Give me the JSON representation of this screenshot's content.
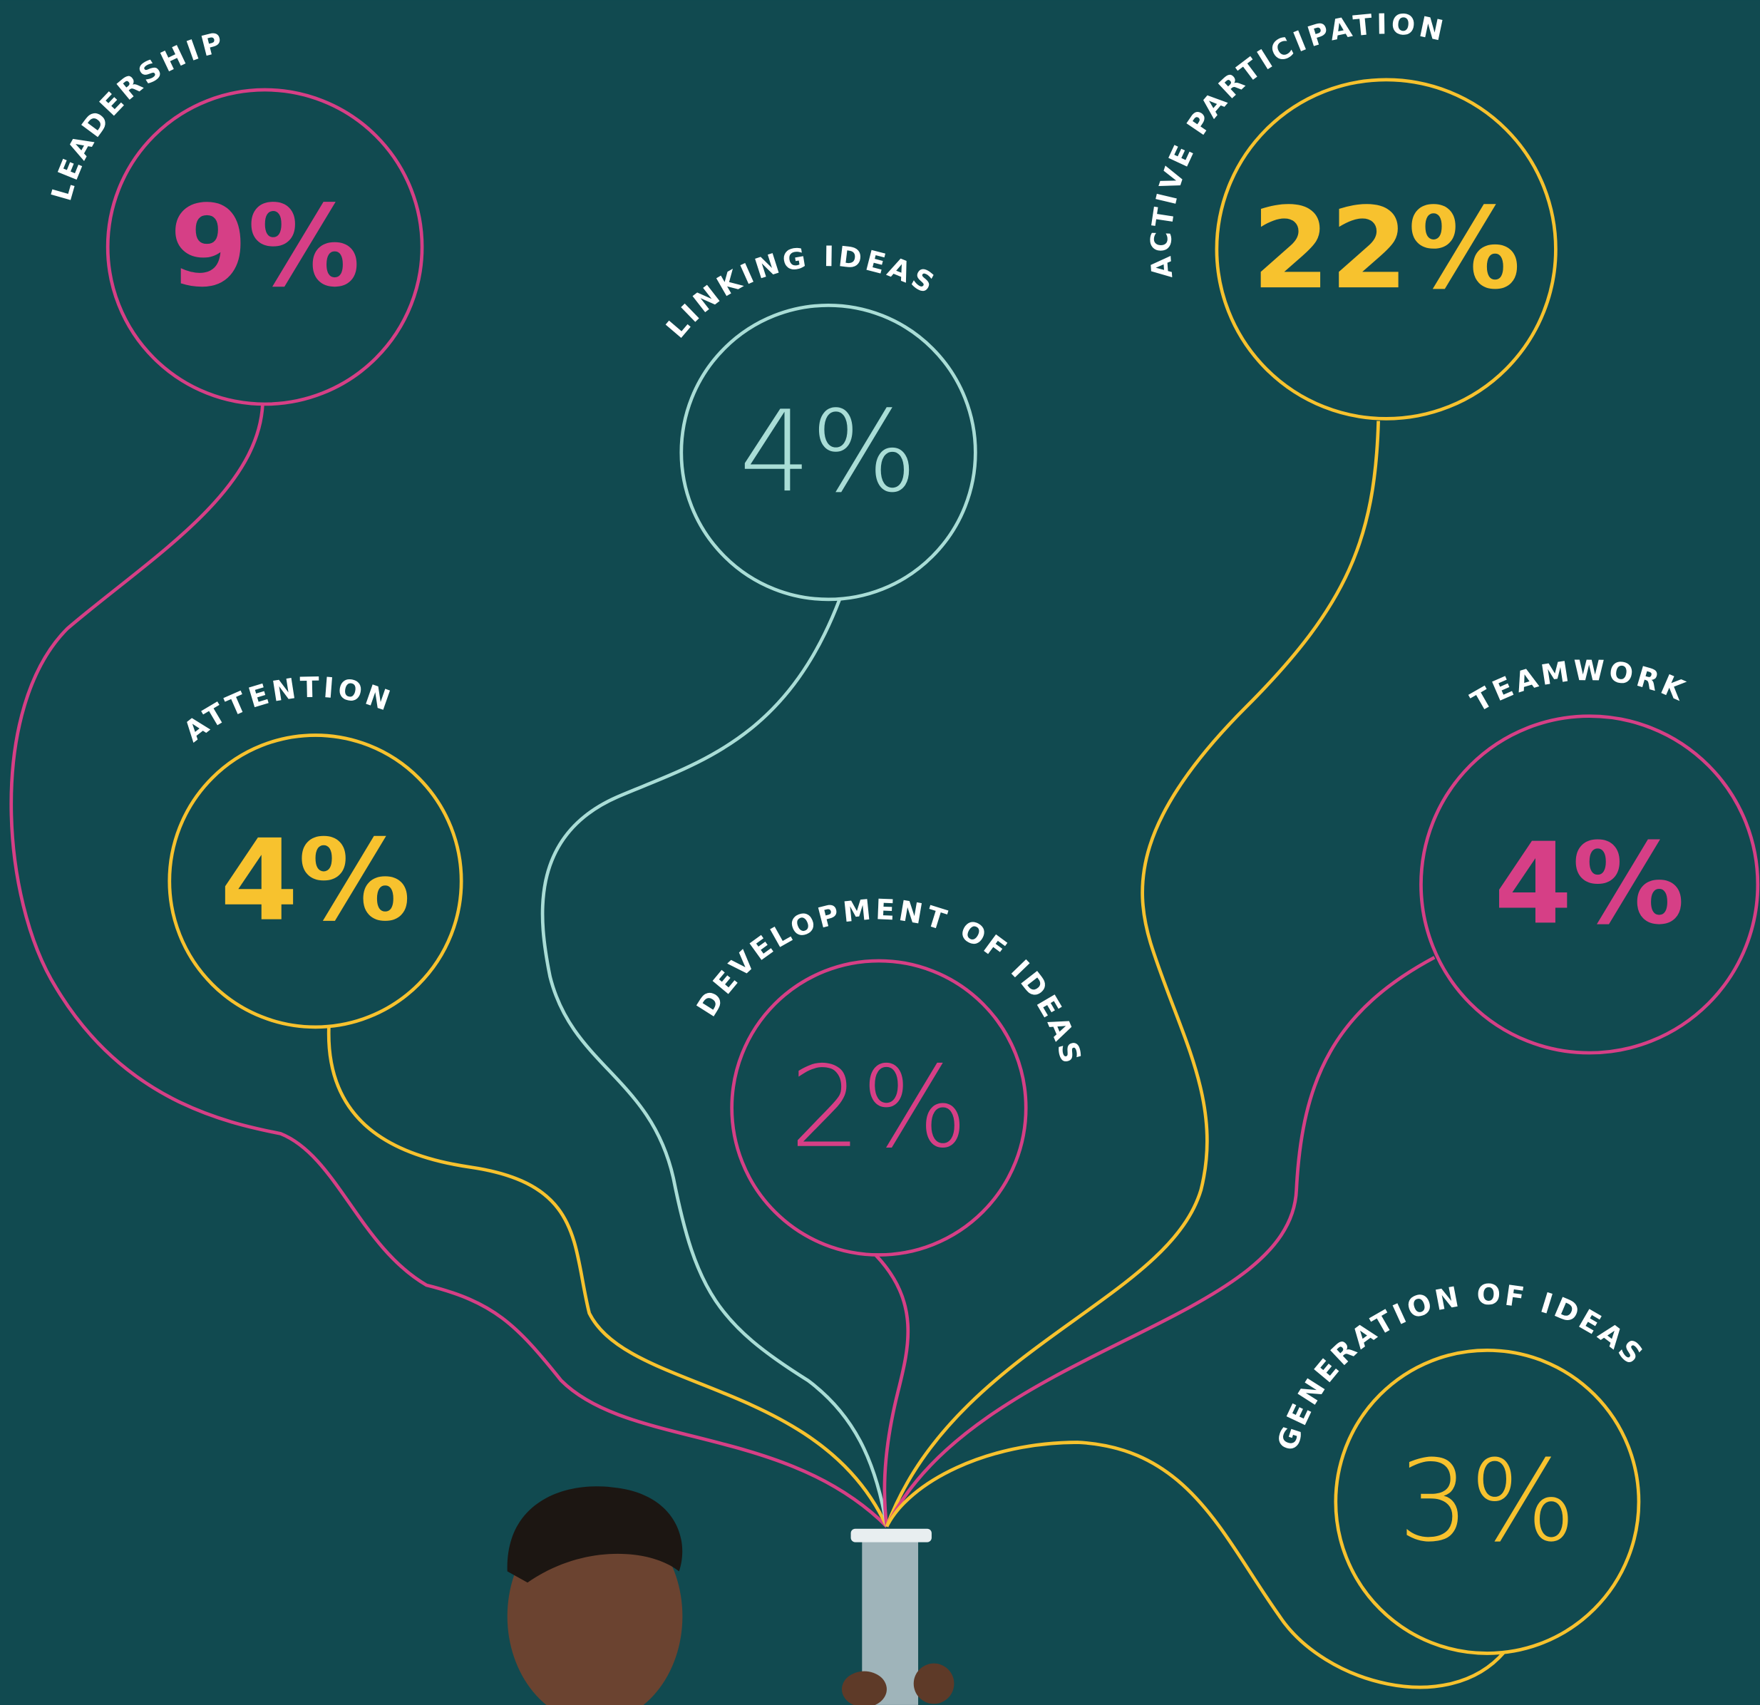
{
  "items": [
    {
      "label": "LEADERSHIP",
      "value": "9%"
    },
    {
      "label": "LINKING IDEAS",
      "value": "4%"
    },
    {
      "label": "ACTIVE PARTICIPATION",
      "value": "22%"
    },
    {
      "label": "ATTENTION",
      "value": "4%"
    },
    {
      "label": "TEAMWORK",
      "value": "4%"
    },
    {
      "label": "DEVELOPMENT OF IDEAS",
      "value": "2%"
    },
    {
      "label": "GENERATION OF IDEAS",
      "value": "3%"
    }
  ]
}
